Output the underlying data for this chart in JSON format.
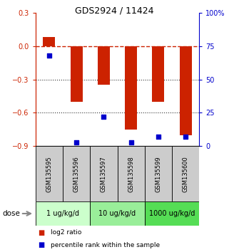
{
  "title": "GDS2924 / 11424",
  "samples": [
    "GSM135595",
    "GSM135596",
    "GSM135597",
    "GSM135598",
    "GSM135599",
    "GSM135600"
  ],
  "log2_ratios": [
    0.08,
    -0.5,
    -0.35,
    -0.75,
    -0.5,
    -0.8
  ],
  "percentile_ranks": [
    68,
    3,
    22,
    3,
    7,
    7
  ],
  "left_ylim": [
    -0.9,
    0.3
  ],
  "right_ylim": [
    0,
    100
  ],
  "left_yticks": [
    -0.9,
    -0.6,
    -0.3,
    0.0,
    0.3
  ],
  "right_yticks": [
    0,
    25,
    50,
    75,
    100
  ],
  "right_yticklabels": [
    "0",
    "25",
    "50",
    "75",
    "100%"
  ],
  "bar_color": "#cc2200",
  "dot_color": "#0000cc",
  "dose_groups": [
    {
      "label": "1 ug/kg/d",
      "indices": [
        0,
        1
      ],
      "color": "#ccffcc"
    },
    {
      "label": "10 ug/kg/d",
      "indices": [
        2,
        3
      ],
      "color": "#99ee99"
    },
    {
      "label": "1000 ug/kg/d",
      "indices": [
        4,
        5
      ],
      "color": "#55dd55"
    }
  ],
  "dose_label": "dose",
  "legend_red": "log2 ratio",
  "legend_blue": "percentile rank within the sample",
  "hline_color": "#cc2200",
  "dotted_line_color": "#333333",
  "sample_box_color": "#cccccc",
  "background_color": "#ffffff"
}
